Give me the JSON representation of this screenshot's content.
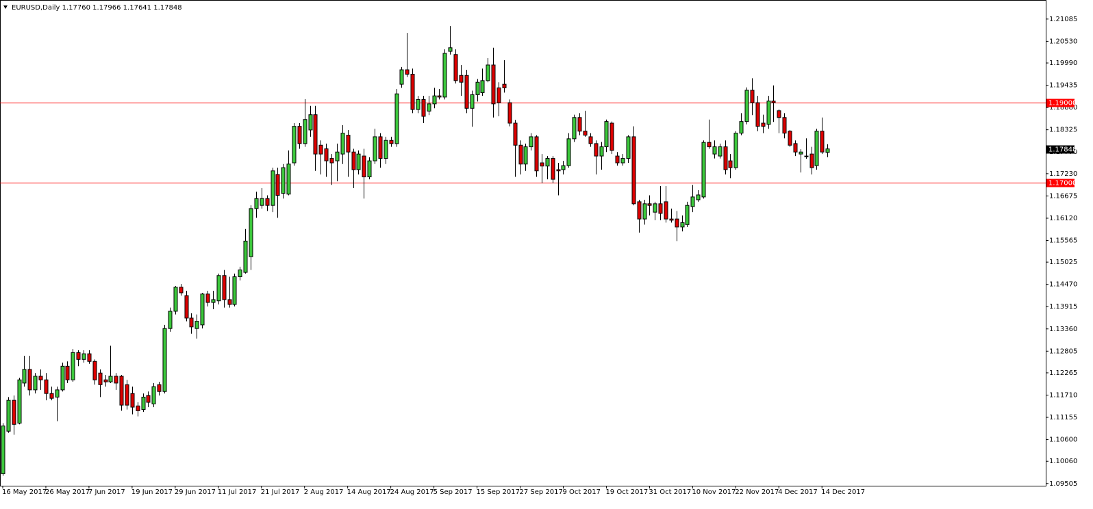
{
  "chart_data": {
    "type": "candlestick",
    "title": "EURUSD,Daily  1.17760 1.17966 1.17641 1.17848",
    "categories": [
      "16 May 2017",
      null,
      null,
      null,
      null,
      null,
      null,
      null,
      "26 May 2017",
      null,
      null,
      null,
      null,
      null,
      null,
      null,
      "7 Jun 2017",
      null,
      null,
      null,
      null,
      null,
      null,
      null,
      "19 Jun 2017",
      null,
      null,
      null,
      null,
      null,
      null,
      null,
      "29 Jun 2017",
      null,
      null,
      null,
      null,
      null,
      null,
      null,
      "11 Jul 2017",
      null,
      null,
      null,
      null,
      null,
      null,
      null,
      "21 Jul 2017",
      null,
      null,
      null,
      null,
      null,
      null,
      null,
      "2 Aug 2017",
      null,
      null,
      null,
      null,
      null,
      null,
      null,
      "14 Aug 2017",
      null,
      null,
      null,
      null,
      null,
      null,
      null,
      "24 Aug 2017",
      null,
      null,
      null,
      null,
      null,
      null,
      null,
      "5 Sep 2017",
      null,
      null,
      null,
      null,
      null,
      null,
      null,
      "15 Sep 2017",
      null,
      null,
      null,
      null,
      null,
      null,
      null,
      "27 Sep 2017",
      null,
      null,
      null,
      null,
      null,
      null,
      null,
      "9 Oct 2017",
      null,
      null,
      null,
      null,
      null,
      null,
      null,
      "19 Oct 2017",
      null,
      null,
      null,
      null,
      null,
      null,
      null,
      "31 Oct 2017",
      null,
      null,
      null,
      null,
      null,
      null,
      null,
      "10 Nov 2017",
      null,
      null,
      null,
      null,
      null,
      null,
      null,
      "22 Nov 2017",
      null,
      null,
      null,
      null,
      null,
      null,
      null,
      "4 Dec 2017",
      null,
      null,
      null,
      null,
      null,
      null,
      null,
      "14 Dec 2017",
      null
    ],
    "open": [
      1.0975,
      1.1081,
      1.1158,
      1.1101,
      1.1201,
      1.1235,
      1.1184,
      1.1218,
      1.1209,
      1.1175,
      1.1166,
      1.1184,
      1.1243,
      1.1209,
      1.1277,
      1.126,
      1.1274,
      1.1255,
      1.1226,
      1.1209,
      1.1204,
      1.1218,
      1.1218,
      1.1197,
      1.1175,
      1.1144,
      1.1135,
      1.117,
      1.1149,
      1.1197,
      1.118,
      1.1337,
      1.138,
      1.144,
      1.1419,
      1.1363,
      1.1337,
      1.1346,
      1.1423,
      1.1402,
      1.1406,
      1.1469,
      1.1409,
      1.1397,
      1.1466,
      1.1477,
      1.1516,
      1.1636,
      1.1644,
      1.1661,
      1.1644,
      1.1721,
      1.1674,
      1.1672,
      1.175,
      1.1841,
      1.1798,
      1.1832,
      1.187,
      1.1794,
      1.1785,
      1.1761,
      1.1755,
      1.1772,
      1.1819,
      1.1777,
      1.1733,
      1.1767,
      1.1715,
      1.1755,
      1.1815,
      1.1761,
      1.1806,
      1.1798,
      1.1946,
      1.1982,
      1.1971,
      1.1883,
      1.1908,
      1.1879,
      1.1897,
      1.1917,
      1.1914,
      1.2028,
      1.202,
      1.1968,
      1.1968,
      1.1886,
      1.192,
      1.1925,
      1.1955,
      1.1994,
      1.1937,
      1.1946,
      1.19,
      1.1849,
      1.1794,
      1.1747,
      1.179,
      1.1815,
      1.175,
      1.1742,
      1.1761,
      1.1733,
      1.1733,
      1.1743,
      1.181,
      1.1863,
      1.1829,
      1.1815,
      1.1798,
      1.1767,
      1.179,
      1.1849,
      1.1767,
      1.175,
      1.1761,
      1.1815,
      1.1653,
      1.161,
      1.1648,
      1.1627,
      1.1648,
      1.1653,
      1.161,
      1.161,
      1.159,
      1.1596,
      1.1641,
      1.1658,
      1.1665,
      1.1801,
      1.1772,
      1.1767,
      1.179,
      1.1755,
      1.1738,
      1.1824,
      1.1853,
      1.1931,
      1.19,
      1.1849,
      1.1846,
      1.1904,
      1.188,
      1.1863,
      1.1829,
      1.1798,
      1.1772,
      1.1767,
      1.1772,
      1.1743,
      1.1829,
      1.1776
    ],
    "high": [
      1.1101,
      1.1166,
      1.117,
      1.1214,
      1.1269,
      1.1269,
      1.1226,
      1.1235,
      1.1226,
      1.1192,
      1.1192,
      1.1252,
      1.1255,
      1.1286,
      1.1283,
      1.1283,
      1.1283,
      1.126,
      1.1235,
      1.1221,
      1.1294,
      1.1226,
      1.1221,
      1.1209,
      1.1192,
      1.1153,
      1.1175,
      1.118,
      1.1201,
      1.1204,
      1.1346,
      1.1389,
      1.1443,
      1.1448,
      1.1431,
      1.1375,
      1.1372,
      1.1426,
      1.1431,
      1.1431,
      1.1474,
      1.1483,
      1.1466,
      1.1474,
      1.1491,
      1.1585,
      1.1644,
      1.1678,
      1.1687,
      1.1669,
      1.1738,
      1.1738,
      1.1747,
      1.1781,
      1.1849,
      1.1849,
      1.1909,
      1.1892,
      1.1892,
      1.1806,
      1.1798,
      1.1772,
      1.1798,
      1.1844,
      1.1832,
      1.1785,
      1.1781,
      1.1785,
      1.1764,
      1.1835,
      1.1824,
      1.1815,
      1.1815,
      1.1934,
      1.1989,
      1.2074,
      1.1985,
      1.1917,
      1.1917,
      1.1917,
      1.1937,
      1.1934,
      1.2033,
      1.2091,
      1.2033,
      1.1994,
      1.1982,
      1.193,
      1.1959,
      1.1985,
      1.2011,
      1.2037,
      1.1951,
      1.2006,
      1.1908,
      1.1857,
      1.1806,
      1.1798,
      1.1824,
      1.1819,
      1.1772,
      1.1767,
      1.1767,
      1.175,
      1.1755,
      1.1824,
      1.187,
      1.1874,
      1.188,
      1.1824,
      1.1806,
      1.1802,
      1.1858,
      1.1853,
      1.1777,
      1.1772,
      1.1819,
      1.1841,
      1.1658,
      1.1658,
      1.1669,
      1.1653,
      1.1692,
      1.1692,
      1.1636,
      1.163,
      1.1619,
      1.1653,
      1.1695,
      1.1682,
      1.1806,
      1.1858,
      1.1806,
      1.1798,
      1.1806,
      1.1772,
      1.1829,
      1.1874,
      1.1938,
      1.1961,
      1.1917,
      1.187,
      1.1917,
      1.1943,
      1.1883,
      1.1874,
      1.1832,
      1.1806,
      1.1784,
      1.1811,
      1.179,
      1.1835,
      1.1863,
      1.17966
    ],
    "low": [
      1.097,
      1.1077,
      1.1072,
      1.1098,
      1.1192,
      1.117,
      1.1175,
      1.1184,
      1.1158,
      1.1158,
      1.1106,
      1.118,
      1.1201,
      1.1204,
      1.1243,
      1.1252,
      1.1249,
      1.1197,
      1.1166,
      1.1192,
      1.1201,
      1.1184,
      1.1132,
      1.1135,
      1.1123,
      1.1118,
      1.1129,
      1.1141,
      1.1141,
      1.117,
      1.1175,
      1.1329,
      1.1372,
      1.1419,
      1.1355,
      1.1324,
      1.1312,
      1.1337,
      1.1392,
      1.1385,
      1.1397,
      1.1389,
      1.1389,
      1.1392,
      1.1457,
      1.1474,
      1.1483,
      1.1613,
      1.1636,
      1.163,
      1.1627,
      1.1613,
      1.1661,
      1.1669,
      1.1743,
      1.1785,
      1.179,
      1.1815,
      1.173,
      1.1721,
      1.1715,
      1.1695,
      1.1704,
      1.1747,
      1.1715,
      1.1687,
      1.1721,
      1.1661,
      1.1709,
      1.1747,
      1.1738,
      1.1747,
      1.179,
      1.179,
      1.1937,
      1.1964,
      1.1874,
      1.1874,
      1.1849,
      1.1869,
      1.1886,
      1.1908,
      1.1908,
      1.202,
      1.1948,
      1.1917,
      1.1874,
      1.184,
      1.1903,
      1.1917,
      1.1951,
      1.1863,
      1.1866,
      1.1925,
      1.1841,
      1.1715,
      1.1721,
      1.173,
      1.1781,
      1.1715,
      1.1699,
      1.1709,
      1.1699,
      1.1669,
      1.1721,
      1.1738,
      1.1802,
      1.1819,
      1.1815,
      1.179,
      1.1721,
      1.1733,
      1.1777,
      1.1772,
      1.1743,
      1.1743,
      1.175,
      1.1644,
      1.1576,
      1.1596,
      1.1619,
      1.1607,
      1.1607,
      1.1601,
      1.1601,
      1.1555,
      1.1579,
      1.159,
      1.1627,
      1.1653,
      1.1661,
      1.1785,
      1.1761,
      1.1761,
      1.1721,
      1.1712,
      1.1733,
      1.1819,
      1.1846,
      1.1869,
      1.1829,
      1.1824,
      1.1835,
      1.1852,
      1.1824,
      1.1811,
      1.179,
      1.1767,
      1.1726,
      1.176,
      1.1721,
      1.1733,
      1.1772,
      1.17641
    ],
    "close": [
      1.1094,
      1.1158,
      1.1098,
      1.1209,
      1.1235,
      1.1184,
      1.1218,
      1.1209,
      1.1175,
      1.1163,
      1.1184,
      1.1243,
      1.1209,
      1.1277,
      1.126,
      1.1274,
      1.1255,
      1.1209,
      1.1197,
      1.1204,
      1.1218,
      1.1201,
      1.1146,
      1.1146,
      1.1141,
      1.1132,
      1.1166,
      1.1153,
      1.1192,
      1.118,
      1.1337,
      1.138,
      1.144,
      1.1426,
      1.1363,
      1.1341,
      1.1355,
      1.1423,
      1.1402,
      1.1409,
      1.1469,
      1.1409,
      1.1397,
      1.1466,
      1.1483,
      1.1555,
      1.1636,
      1.1661,
      1.1661,
      1.1644,
      1.173,
      1.1669,
      1.1738,
      1.1747,
      1.1841,
      1.1798,
      1.1858,
      1.187,
      1.1772,
      1.1772,
      1.1755,
      1.175,
      1.1777,
      1.1824,
      1.1777,
      1.1733,
      1.1772,
      1.1715,
      1.1755,
      1.1815,
      1.1761,
      1.1806,
      1.1798,
      1.1922,
      1.1982,
      1.1971,
      1.1883,
      1.1908,
      1.1866,
      1.1897,
      1.1917,
      1.1914,
      1.2023,
      1.2037,
      1.1955,
      1.1951,
      1.1886,
      1.192,
      1.1951,
      1.1955,
      1.1994,
      1.1897,
      1.19,
      1.1937,
      1.1849,
      1.1794,
      1.1747,
      1.179,
      1.1815,
      1.173,
      1.1742,
      1.1761,
      1.1709,
      1.173,
      1.1743,
      1.181,
      1.1863,
      1.1829,
      1.1819,
      1.1798,
      1.1767,
      1.179,
      1.1853,
      1.1781,
      1.175,
      1.1761,
      1.1815,
      1.1648,
      1.161,
      1.1648,
      1.1644,
      1.1648,
      1.1624,
      1.161,
      1.1607,
      1.159,
      1.1601,
      1.1644,
      1.1665,
      1.167,
      1.1801,
      1.179,
      1.179,
      1.179,
      1.1733,
      1.1738,
      1.1824,
      1.1853,
      1.1931,
      1.19,
      1.1841,
      1.1841,
      1.1904,
      1.19,
      1.1863,
      1.1824,
      1.1794,
      1.1777,
      1.1777,
      1.1766,
      1.1738,
      1.1829,
      1.1777,
      1.17848
    ],
    "up_color": "#3cc83c",
    "down_color": "#dd0000",
    "ylim": [
      1.0945,
      1.2156
    ],
    "yticks": [
      {
        "value": 1.21085,
        "label": "1.21085"
      },
      {
        "value": 1.2053,
        "label": "1.20530"
      },
      {
        "value": 1.1999,
        "label": "1.19990"
      },
      {
        "value": 1.19435,
        "label": "1.19435"
      },
      {
        "value": 1.1888,
        "label": "1.18880"
      },
      {
        "value": 1.18325,
        "label": "1.18325"
      },
      {
        "value": 1.1777,
        "label": "1.17770"
      },
      {
        "value": 1.1723,
        "label": "1.17230"
      },
      {
        "value": 1.16675,
        "label": "1.16675"
      },
      {
        "value": 1.1612,
        "label": "1.16120"
      },
      {
        "value": 1.15565,
        "label": "1.15565"
      },
      {
        "value": 1.15025,
        "label": "1.15025"
      },
      {
        "value": 1.1447,
        "label": "1.14470"
      },
      {
        "value": 1.13915,
        "label": "1.13915"
      },
      {
        "value": 1.1336,
        "label": "1.13360"
      },
      {
        "value": 1.12805,
        "label": "1.12805"
      },
      {
        "value": 1.12265,
        "label": "1.12265"
      },
      {
        "value": 1.1171,
        "label": "1.11710"
      },
      {
        "value": 1.11155,
        "label": "1.11155"
      },
      {
        "value": 1.106,
        "label": "1.10600"
      },
      {
        "value": 1.1006,
        "label": "1.10060"
      },
      {
        "value": 1.09505,
        "label": "1.09505"
      }
    ],
    "hlines": [
      {
        "value": 1.19,
        "label": "1.19000",
        "color": "#ff0000"
      },
      {
        "value": 1.17,
        "label": "1.17000",
        "color": "#ff0000"
      }
    ]
  }
}
